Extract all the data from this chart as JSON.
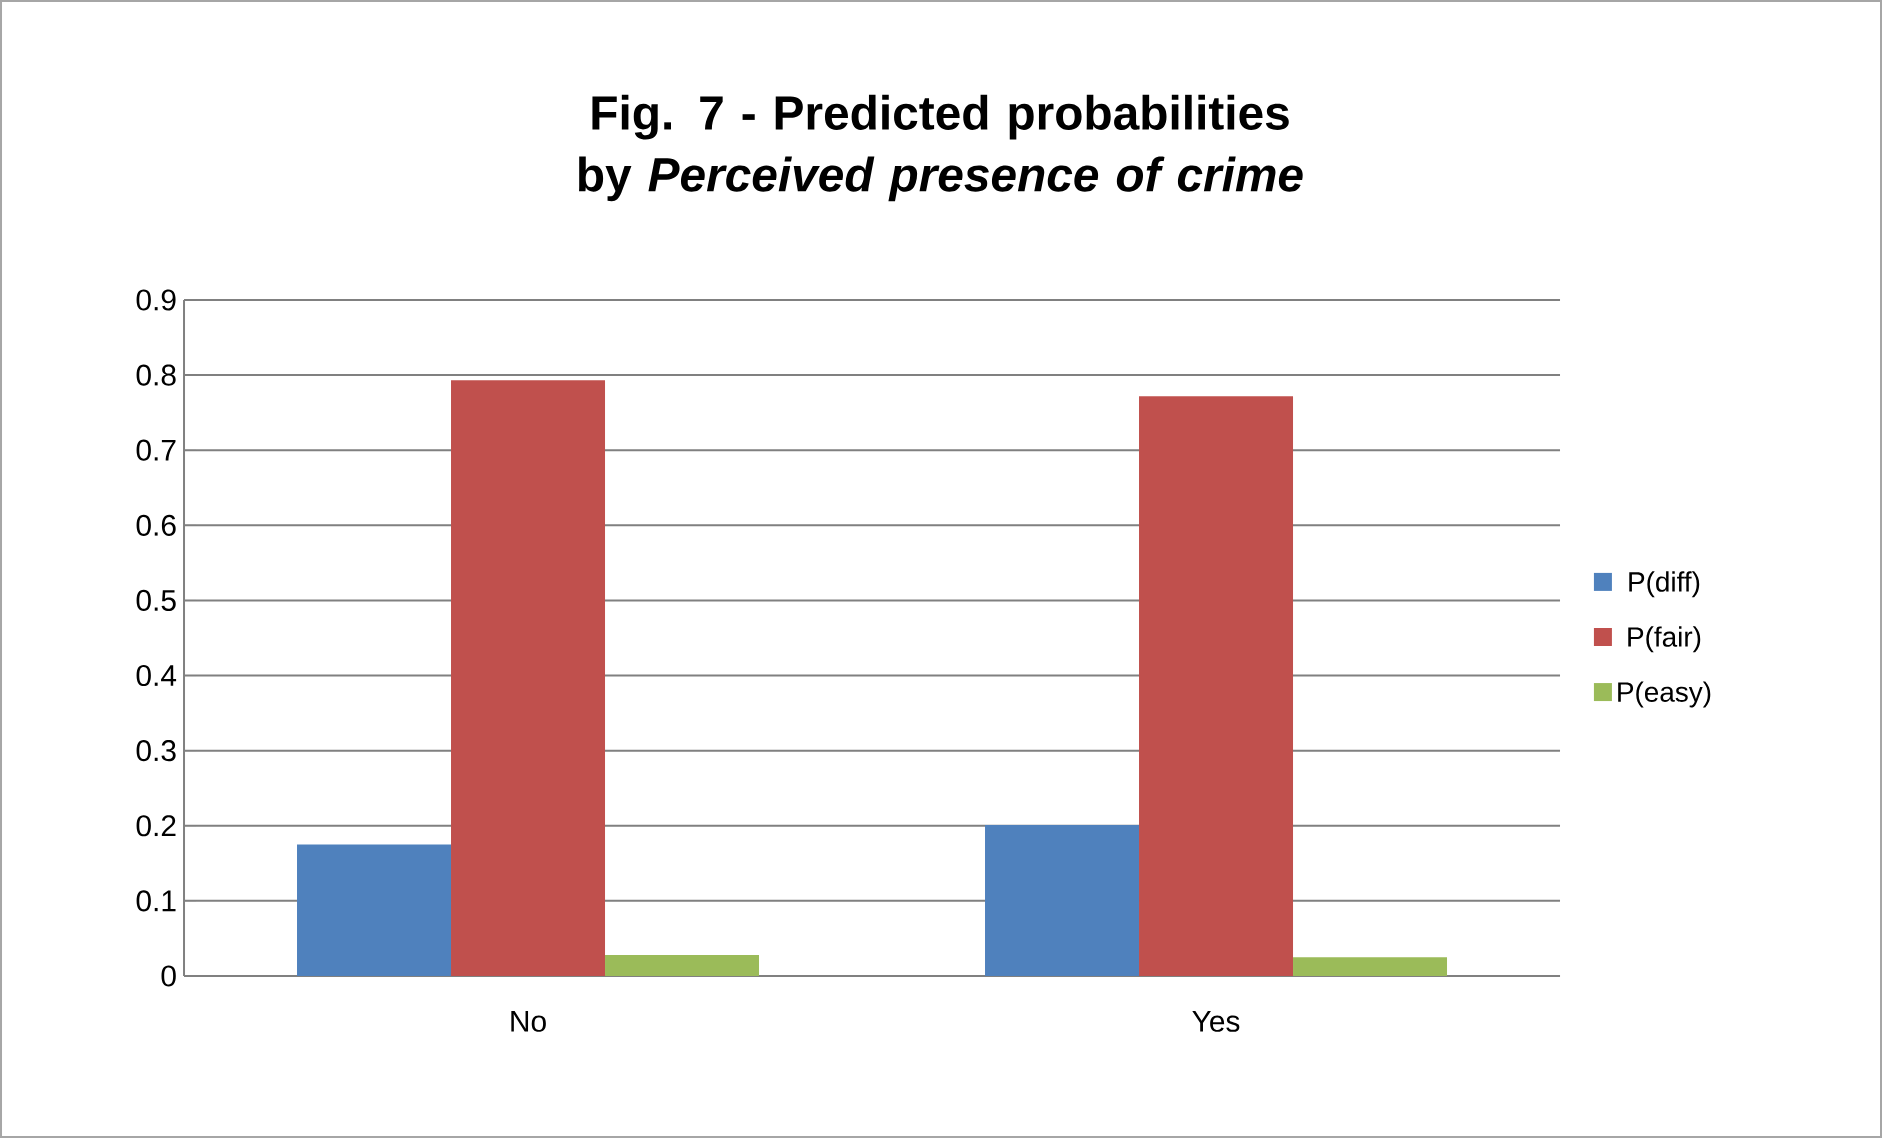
{
  "chart_data": {
    "type": "bar",
    "title": "Fig. 7 - Predicted probabilities by *Perceived presence of crime*",
    "categories": [
      "No",
      "Yes"
    ],
    "series": [
      {
        "name": "P(diff)",
        "color": "#4f81bd",
        "values": [
          0.175,
          0.201
        ]
      },
      {
        "name": "P(fair)",
        "color": "#c0504d",
        "values": [
          0.793,
          0.772
        ]
      },
      {
        "name": "P(easy)",
        "color": "#9bbb59",
        "values": [
          0.028,
          0.025
        ]
      }
    ],
    "ylim": [
      0,
      0.9
    ],
    "yticks": [
      0,
      0.1,
      0.2,
      0.3,
      0.4,
      0.5,
      0.6,
      0.7,
      0.8,
      0.9
    ],
    "grid": "y",
    "legend": "right"
  }
}
